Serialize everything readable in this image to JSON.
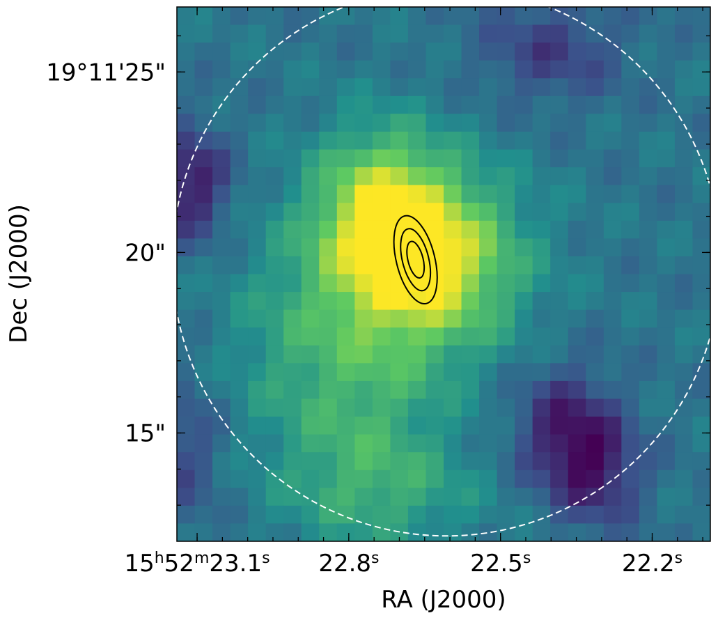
{
  "chart_data": {
    "type": "heatmap",
    "title": "",
    "xlabel": "RA (J2000)",
    "ylabel": "Dec (J2000)",
    "colormap": "viridis",
    "colormap_stops": [
      "#440154",
      "#3b528b",
      "#21908d",
      "#5dc962",
      "#fde725"
    ],
    "x_ticks": [
      {
        "value_s": 23.1,
        "parts": [
          {
            "t": "15"
          },
          {
            "t": "h",
            "sup": true
          },
          {
            "t": "52"
          },
          {
            "t": "m",
            "sup": true
          },
          {
            "t": "23.1"
          },
          {
            "t": "s",
            "sup": true
          }
        ]
      },
      {
        "value_s": 22.8,
        "parts": [
          {
            "t": "22.8"
          },
          {
            "t": "s",
            "sup": true
          }
        ]
      },
      {
        "value_s": 22.5,
        "parts": [
          {
            "t": "22.5"
          },
          {
            "t": "s",
            "sup": true
          }
        ]
      },
      {
        "value_s": 22.2,
        "parts": [
          {
            "t": "22.2"
          },
          {
            "t": "s",
            "sup": true
          }
        ]
      }
    ],
    "y_ticks": [
      {
        "value_arcsec": 25,
        "label": "19°11'25\""
      },
      {
        "value_arcsec": 20,
        "label": "20\""
      },
      {
        "value_arcsec": 15,
        "label": "15\""
      }
    ],
    "xlim_s": [
      23.14,
      22.085
    ],
    "ylim_arcsec": [
      12.0,
      26.8
    ],
    "grid_nx": 30,
    "grid_ny": 30,
    "blobs": [
      {
        "ra_s": 22.66,
        "dec": 19.8,
        "sx": 0.13,
        "sy": 1.7,
        "amp": 1.0
      },
      {
        "ra_s": 22.74,
        "dec": 21.5,
        "sx": 0.09,
        "sy": 1.5,
        "amp": 0.5
      },
      {
        "ra_s": 22.77,
        "dec": 15.5,
        "sx": 0.12,
        "sy": 2.2,
        "amp": 0.35
      },
      {
        "ra_s": 22.93,
        "dec": 17.7,
        "sx": 0.1,
        "sy": 2.0,
        "amp": 0.18
      },
      {
        "ra_s": 22.72,
        "dec": 13.3,
        "sx": 0.15,
        "sy": 1.0,
        "amp": 0.2
      },
      {
        "ra_s": 22.37,
        "dec": 15.0,
        "sx": 0.07,
        "sy": 1.2,
        "amp": -0.5
      },
      {
        "ra_s": 22.3,
        "dec": 13.8,
        "sx": 0.06,
        "sy": 1.0,
        "amp": -0.35
      },
      {
        "ra_s": 23.11,
        "dec": 21.9,
        "sx": 0.05,
        "sy": 1.1,
        "amp": -0.5
      },
      {
        "ra_s": 22.4,
        "dec": 25.6,
        "sx": 0.1,
        "sy": 1.0,
        "amp": -0.3
      },
      {
        "ra_s": 23.12,
        "dec": 14.5,
        "sx": 0.05,
        "sy": 1.5,
        "amp": -0.25
      }
    ],
    "contours": [
      {
        "ra_s": 22.668,
        "dec": 19.8,
        "rx_s": 0.038,
        "ry_arcsec": 1.25,
        "tilt_deg": -14
      },
      {
        "ra_s": 22.668,
        "dec": 19.8,
        "rx_s": 0.026,
        "ry_arcsec": 0.88,
        "tilt_deg": -14
      },
      {
        "ra_s": 22.668,
        "dec": 19.8,
        "rx_s": 0.015,
        "ry_arcsec": 0.52,
        "tilt_deg": -14
      }
    ],
    "beam_circle": {
      "ra_s": 22.607,
      "dec": 19.75,
      "r_arcsec": 7.6,
      "style": "dashed",
      "color": "#ffffff"
    },
    "grid": false,
    "legend": "none"
  }
}
